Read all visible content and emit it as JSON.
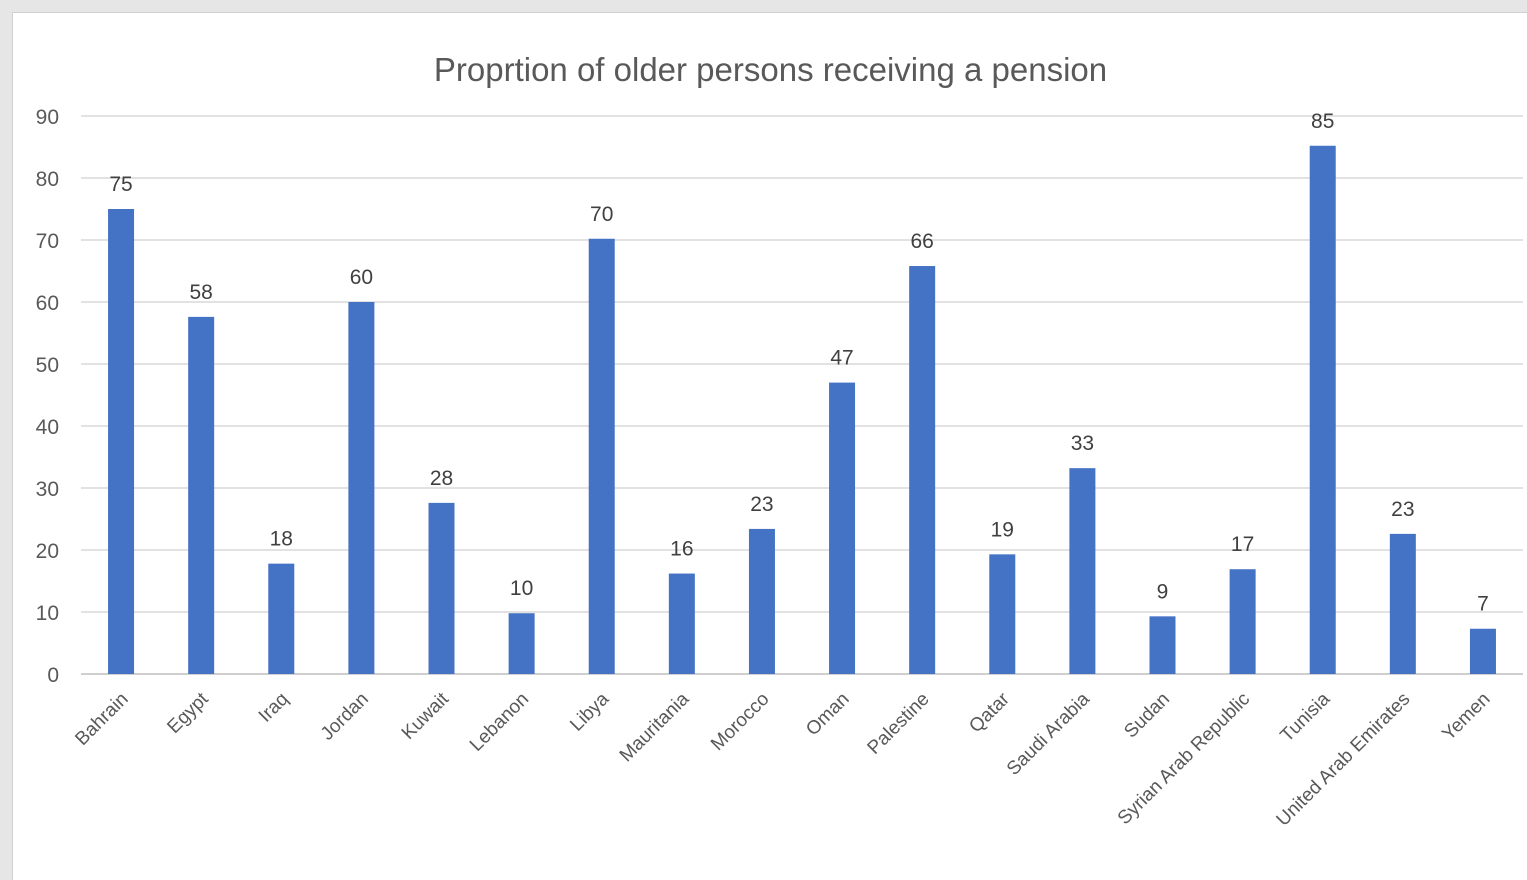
{
  "chart_data": {
    "type": "bar",
    "title": "Proprtion of older persons receiving a pension",
    "xlabel": "",
    "ylabel": "",
    "ylim": [
      0,
      90
    ],
    "yticks": [
      0,
      10,
      20,
      30,
      40,
      50,
      60,
      70,
      80,
      90
    ],
    "grid": true,
    "legend": "none",
    "bar_color": "#4472C4",
    "categories": [
      "Bahrain",
      "Egypt",
      "Iraq",
      "Jordan",
      "Kuwait",
      "Lebanon",
      "Libya",
      "Mauritania",
      "Morocco",
      "Oman",
      "Palestine",
      "Qatar",
      "Saudi Arabia",
      "Sudan",
      "Syrian Arab Republic",
      "Tunisia",
      "United Arab Emirates",
      "Yemen"
    ],
    "values": [
      75,
      57.6,
      17.8,
      60,
      27.6,
      9.8,
      70.2,
      16.2,
      23.4,
      47,
      65.8,
      19.3,
      33.2,
      9.3,
      16.9,
      85.2,
      22.6,
      7.3
    ],
    "data_labels": [
      "75",
      "58",
      "18",
      "60",
      "28",
      "10",
      "70",
      "16",
      "23",
      "47",
      "66",
      "19",
      "33",
      "9",
      "17",
      "85",
      "23",
      "7"
    ]
  }
}
